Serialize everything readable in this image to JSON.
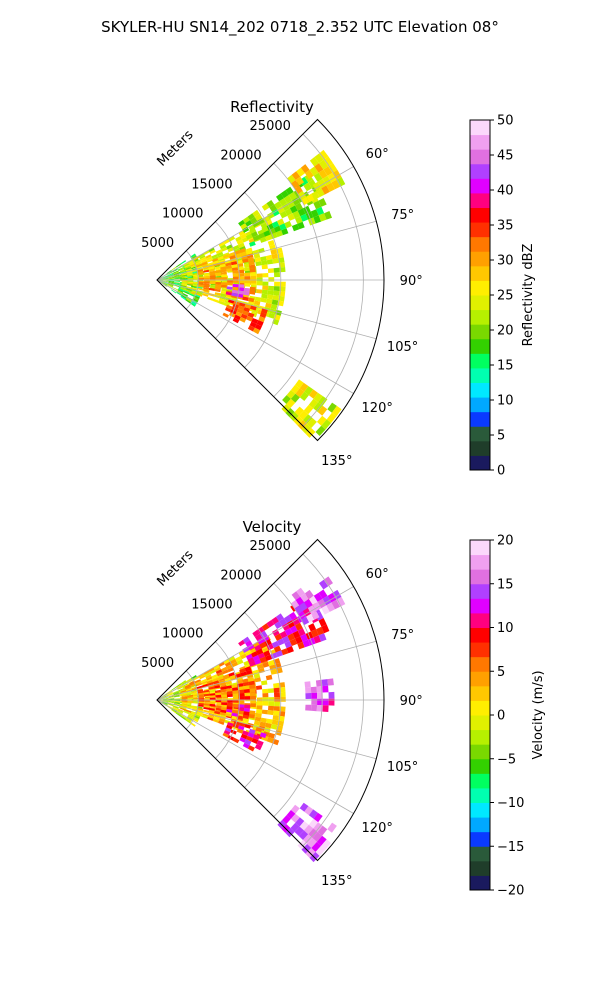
{
  "title": "SKYLER-HU  SN14_202  0718_2.352 UTC Elevation 08°",
  "chart_data": [
    {
      "type": "heatmap",
      "projection": "polar-sector",
      "title": "Reflectivity",
      "radial_label": "Meters",
      "radial_ticks": [
        "5000",
        "10000",
        "15000",
        "20000",
        "25000"
      ],
      "radial_tick_values": [
        5000,
        10000,
        15000,
        20000,
        25000
      ],
      "rmax": 27500,
      "angle_ticks": [
        "60°",
        "75°",
        "90°",
        "105°",
        "120°",
        "135°"
      ],
      "angle_tick_values": [
        60,
        75,
        90,
        105,
        120,
        135
      ],
      "theta_range_deg": [
        45,
        135
      ],
      "grid": true,
      "colorbar": {
        "label": "Reflectivity dBZ",
        "min": 0,
        "max": 50,
        "ticks": [
          "0",
          "5",
          "10",
          "15",
          "20",
          "25",
          "30",
          "35",
          "40",
          "45",
          "50"
        ],
        "tick_values": [
          0,
          5,
          10,
          15,
          20,
          25,
          30,
          35,
          40,
          45,
          50
        ],
        "colors": [
          "#1a1a5e",
          "#1f3d2a",
          "#2a5a3a",
          "#0a3aff",
          "#00a8ff",
          "#00e8ff",
          "#00ffb0",
          "#00ff60",
          "#33d100",
          "#7ad800",
          "#b6f000",
          "#e0f000",
          "#ffee00",
          "#ffc800",
          "#ffa000",
          "#ff7800",
          "#ff3000",
          "#ff0000",
          "#ff0080",
          "#e000ff",
          "#b040ff",
          "#e070e0",
          "#f0a0f0",
          "#fbd8fb"
        ]
      },
      "echo_clusters": [
        {
          "r_range": [
            0,
            5500
          ],
          "theta_range": [
            55,
            125
          ],
          "value": 18
        },
        {
          "r_range": [
            3000,
            15000
          ],
          "theta_range": [
            60,
            110
          ],
          "value": 24
        },
        {
          "r_range": [
            5000,
            12000
          ],
          "theta_range": [
            70,
            102
          ],
          "value": 30
        },
        {
          "r_range": [
            8500,
            11000
          ],
          "theta_range": [
            93,
            101
          ],
          "value": 42
        },
        {
          "r_range": [
            9000,
            13500
          ],
          "theta_range": [
            105,
            118
          ],
          "value": 34
        },
        {
          "r_range": [
            12000,
            22000
          ],
          "theta_range": [
            55,
            70
          ],
          "value": 20
        },
        {
          "r_range": [
            20000,
            25000
          ],
          "theta_range": [
            52,
            62
          ],
          "value": 26
        },
        {
          "r_range": [
            21000,
            27000
          ],
          "theta_range": [
            125,
            135
          ],
          "value": 24
        }
      ]
    },
    {
      "type": "heatmap",
      "projection": "polar-sector",
      "title": "Velocity",
      "radial_label": "Meters",
      "radial_ticks": [
        "5000",
        "10000",
        "15000",
        "20000",
        "25000"
      ],
      "radial_tick_values": [
        5000,
        10000,
        15000,
        20000,
        25000
      ],
      "rmax": 27500,
      "angle_ticks": [
        "60°",
        "75°",
        "90°",
        "105°",
        "120°",
        "135°"
      ],
      "angle_tick_values": [
        60,
        75,
        90,
        105,
        120,
        135
      ],
      "theta_range_deg": [
        45,
        135
      ],
      "grid": true,
      "colorbar": {
        "label": "Velocity (m/s)",
        "min": -20,
        "max": 20,
        "ticks": [
          "−20",
          "−15",
          "−10",
          "−5",
          "0",
          "5",
          "10",
          "15",
          "20"
        ],
        "tick_values": [
          -20,
          -15,
          -10,
          -5,
          0,
          5,
          10,
          15,
          20
        ],
        "colors": [
          "#1a1a5e",
          "#1f3d2a",
          "#2a5a3a",
          "#0a3aff",
          "#00a8ff",
          "#00e8ff",
          "#00ffb0",
          "#00ff60",
          "#33d100",
          "#7ad800",
          "#b6f000",
          "#e0f000",
          "#ffee00",
          "#ffc800",
          "#ffa000",
          "#ff7800",
          "#ff3000",
          "#ff0000",
          "#ff0080",
          "#e000ff",
          "#b040ff",
          "#e070e0",
          "#f0a0f0",
          "#fbd8fb"
        ]
      },
      "echo_clusters": [
        {
          "r_range": [
            0,
            5500
          ],
          "theta_range": [
            55,
            125
          ],
          "value": -2
        },
        {
          "r_range": [
            3000,
            15000
          ],
          "theta_range": [
            60,
            110
          ],
          "value": 3
        },
        {
          "r_range": [
            5000,
            12000
          ],
          "theta_range": [
            70,
            102
          ],
          "value": 6
        },
        {
          "r_range": [
            8500,
            11000
          ],
          "theta_range": [
            93,
            101
          ],
          "value": 9
        },
        {
          "r_range": [
            9000,
            13500
          ],
          "theta_range": [
            105,
            118
          ],
          "value": 10
        },
        {
          "r_range": [
            12000,
            22000
          ],
          "theta_range": [
            55,
            70
          ],
          "value": 11
        },
        {
          "r_range": [
            18000,
            21500
          ],
          "theta_range": [
            83,
            92
          ],
          "value": 14
        },
        {
          "r_range": [
            20000,
            25000
          ],
          "theta_range": [
            52,
            62
          ],
          "value": 15
        },
        {
          "r_range": [
            21000,
            27000
          ],
          "theta_range": [
            125,
            135
          ],
          "value": 16
        }
      ]
    }
  ]
}
